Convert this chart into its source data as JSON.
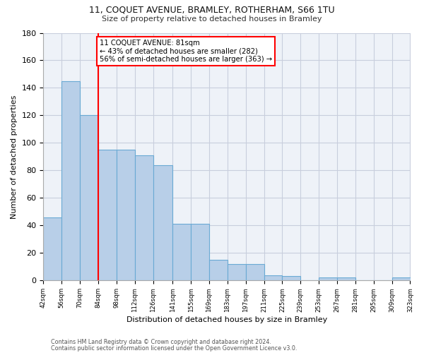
{
  "title1": "11, COQUET AVENUE, BRAMLEY, ROTHERHAM, S66 1TU",
  "title2": "Size of property relative to detached houses in Bramley",
  "xlabel": "Distribution of detached houses by size in Bramley",
  "ylabel": "Number of detached properties",
  "bins": [
    42,
    56,
    70,
    84,
    98,
    112,
    126,
    141,
    155,
    169,
    183,
    197,
    211,
    225,
    239,
    253,
    267,
    281,
    295,
    309,
    323
  ],
  "bar_values": [
    46,
    145,
    120,
    95,
    95,
    91,
    84,
    41,
    41,
    15,
    12,
    12,
    4,
    3,
    0,
    2,
    2,
    0,
    0,
    2
  ],
  "bar_color": "#b8cfe8",
  "bar_edgecolor": "#6aaad4",
  "vline_x": 84,
  "vline_color": "red",
  "annotation_text": "11 COQUET AVENUE: 81sqm\n← 43% of detached houses are smaller (282)\n56% of semi-detached houses are larger (363) →",
  "annotation_box_color": "white",
  "annotation_box_edgecolor": "red",
  "ylim": [
    0,
    180
  ],
  "yticks": [
    0,
    20,
    40,
    60,
    80,
    100,
    120,
    140,
    160,
    180
  ],
  "footer1": "Contains HM Land Registry data © Crown copyright and database right 2024.",
  "footer2": "Contains public sector information licensed under the Open Government Licence v3.0.",
  "background_color": "#eef2f8",
  "grid_color": "#c8cedd"
}
